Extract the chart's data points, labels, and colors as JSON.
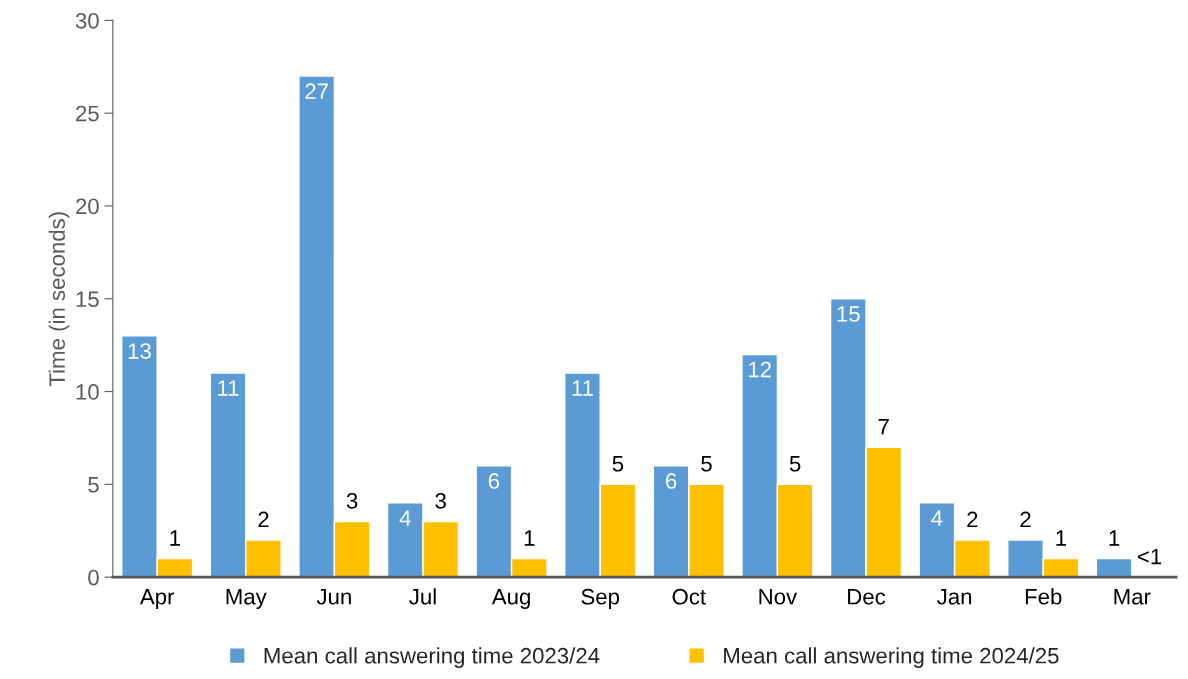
{
  "chart_data": {
    "type": "bar",
    "ylabel": "Time (in seconds)",
    "categories": [
      "Apr",
      "May",
      "Jun",
      "Jul",
      "Aug",
      "Sep",
      "Oct",
      "Nov",
      "Dec",
      "Jan",
      "Feb",
      "Mar"
    ],
    "series": [
      {
        "name": "Mean call answering time 2023/24",
        "color": "#5b9bd5",
        "values": [
          13,
          11,
          27,
          4,
          6,
          11,
          6,
          12,
          15,
          4,
          2,
          1
        ]
      },
      {
        "name": "Mean call answering time 2024/25",
        "color": "#ffc000",
        "values": [
          1,
          2,
          3,
          3,
          1,
          5,
          5,
          5,
          7,
          2,
          1,
          null
        ],
        "value_labels": [
          "1",
          "2",
          "3",
          "3",
          "1",
          "5",
          "5",
          "5",
          "7",
          "2",
          "1",
          "<1"
        ]
      }
    ],
    "ylim": [
      0,
      30
    ],
    "yticks": [
      0,
      5,
      10,
      15,
      20,
      25,
      30
    ],
    "grid": false,
    "legend": "bottom",
    "data_labels": true
  }
}
